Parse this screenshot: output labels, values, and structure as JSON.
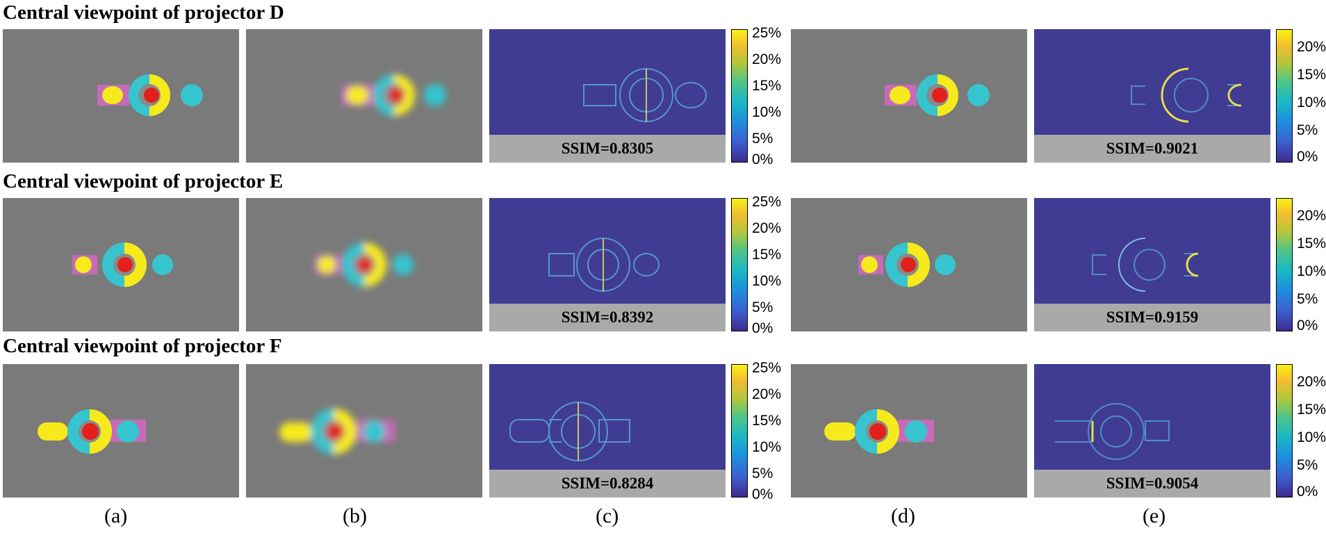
{
  "rows": [
    {
      "title": "Central viewpoint of projector D",
      "ssim_c": "SSIM=0.8305",
      "ssim_e": "SSIM=0.9021"
    },
    {
      "title": "Central viewpoint of projector E",
      "ssim_c": "SSIM=0.8392",
      "ssim_e": "SSIM=0.9159"
    },
    {
      "title": "Central viewpoint of projector F",
      "ssim_c": "SSIM=0.8284",
      "ssim_e": "SSIM=0.9054"
    }
  ],
  "colorbar_c_ticks": [
    "25%",
    "20%",
    "15%",
    "10%",
    "5%",
    "0%"
  ],
  "colorbar_e_ticks": [
    "20%",
    "15%",
    "10%",
    "5%",
    "0%"
  ],
  "subfigure_labels": [
    "(a)",
    "(b)",
    "(c)",
    "(d)",
    "(e)"
  ],
  "colors": {
    "panel_gray": "#7a7a7a",
    "error_background": "#403c93",
    "ssim_strip": "#a9a9a9",
    "yellow": "#f7ea1c",
    "cyan": "#36c5cf",
    "red": "#e3201b",
    "magenta": "#c66bb7"
  }
}
